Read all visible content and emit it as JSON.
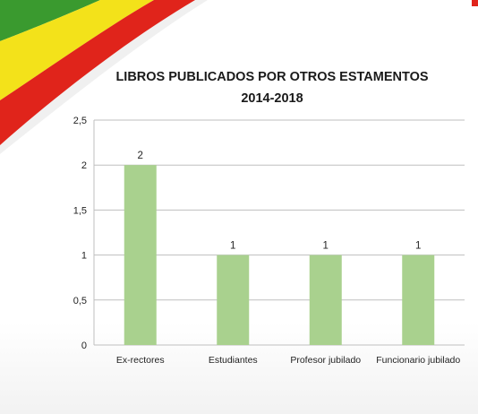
{
  "colors": {
    "flag_green": "#3a9a2f",
    "flag_yellow": "#f3e21a",
    "flag_red": "#e0241b",
    "bar_fill": "#a9d18e",
    "grid": "#bfbfbf"
  },
  "chart_data": {
    "type": "bar",
    "title": "LIBROS PUBLICADOS POR OTROS ESTAMENTOS",
    "subtitle": "2014-2018",
    "categories": [
      "Ex-rectores",
      "Estudiantes",
      "Profesor jubilado",
      "Funcionario jubilado"
    ],
    "values": [
      2,
      1,
      1,
      1
    ],
    "data_labels": [
      "2",
      "1",
      "1",
      "1"
    ],
    "ylim": [
      0,
      2.5
    ],
    "yticks": [
      0,
      0.5,
      1,
      1.5,
      2,
      2.5
    ],
    "ytick_labels": [
      "0",
      "0,5",
      "1",
      "1,5",
      "2",
      "2,5"
    ],
    "xlabel": "",
    "ylabel": "",
    "grid": true,
    "legend": "none"
  }
}
